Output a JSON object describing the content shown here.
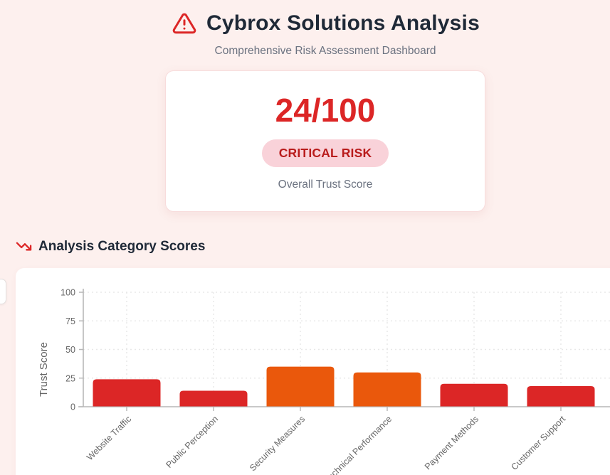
{
  "header": {
    "title": "Cybrox Solutions Analysis",
    "subtitle": "Comprehensive Risk Assessment Dashboard",
    "warning_icon": "alert-triangle-icon"
  },
  "score_card": {
    "score": "24/100",
    "badge": "CRITICAL RISK",
    "label": "Overall Trust Score"
  },
  "section": {
    "title": "Analysis Category Scores",
    "icon": "trending-down-icon"
  },
  "colors": {
    "accent_red": "#dc2626",
    "accent_orange": "#ea580c",
    "badge_text": "#b91c1c",
    "badge_bg": "#f9d2d9",
    "heading": "#1f2937",
    "muted_text": "#6b7280",
    "page_bg": "#fdf0ee"
  },
  "chart_data": {
    "type": "bar",
    "title": "",
    "categories": [
      "Website Traffic",
      "Public Perception",
      "Security Measures",
      "Technical Performance",
      "Payment Methods",
      "Customer Support"
    ],
    "values": [
      24,
      14,
      35,
      30,
      20,
      18
    ],
    "bar_colors": [
      "#dc2626",
      "#dc2626",
      "#ea580c",
      "#ea580c",
      "#dc2626",
      "#dc2626"
    ],
    "xlabel": "",
    "ylabel": "Trust Score",
    "ylim": [
      0,
      100
    ],
    "yticks": [
      0,
      25,
      50,
      75,
      100
    ],
    "grid": true,
    "legend": false,
    "x_label_rotation_deg": -45
  }
}
